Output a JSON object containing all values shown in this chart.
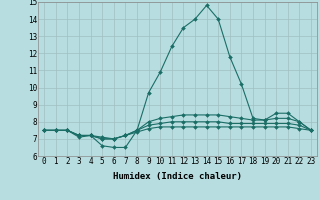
{
  "xlabel": "Humidex (Indice chaleur)",
  "ylabel": "",
  "xlim": [
    -0.5,
    23.5
  ],
  "ylim": [
    6,
    15
  ],
  "yticks": [
    6,
    7,
    8,
    9,
    10,
    11,
    12,
    13,
    14,
    15
  ],
  "xticks": [
    0,
    1,
    2,
    3,
    4,
    5,
    6,
    7,
    8,
    9,
    10,
    11,
    12,
    13,
    14,
    15,
    16,
    17,
    18,
    19,
    20,
    21,
    22,
    23
  ],
  "xtick_labels": [
    "0",
    "1",
    "2",
    "3",
    "4",
    "5",
    "6",
    "7",
    "8",
    "9",
    "10",
    "11",
    "12",
    "13",
    "14",
    "15",
    "16",
    "17",
    "18",
    "19",
    "20",
    "21",
    "22",
    "23"
  ],
  "background_color": "#b8dde0",
  "grid_color": "#9fbfc2",
  "line_color": "#1a6e66",
  "series": [
    [
      7.5,
      7.5,
      7.5,
      7.1,
      7.2,
      6.6,
      6.5,
      6.5,
      7.5,
      9.7,
      10.9,
      12.4,
      13.5,
      14.0,
      14.8,
      14.0,
      11.8,
      10.2,
      8.2,
      8.1,
      8.5,
      8.5,
      8.0,
      7.5
    ],
    [
      7.5,
      7.5,
      7.5,
      7.2,
      7.2,
      7.0,
      7.0,
      7.2,
      7.5,
      8.0,
      8.2,
      8.3,
      8.4,
      8.4,
      8.4,
      8.4,
      8.3,
      8.2,
      8.1,
      8.1,
      8.2,
      8.2,
      8.0,
      7.5
    ],
    [
      7.5,
      7.5,
      7.5,
      7.2,
      7.2,
      7.0,
      7.0,
      7.2,
      7.5,
      7.8,
      7.9,
      8.0,
      8.0,
      8.0,
      8.0,
      8.0,
      7.9,
      7.9,
      7.9,
      7.9,
      7.9,
      7.9,
      7.8,
      7.5
    ],
    [
      7.5,
      7.5,
      7.5,
      7.2,
      7.2,
      7.1,
      7.0,
      7.2,
      7.4,
      7.6,
      7.7,
      7.7,
      7.7,
      7.7,
      7.7,
      7.7,
      7.7,
      7.7,
      7.7,
      7.7,
      7.7,
      7.7,
      7.6,
      7.5
    ]
  ],
  "tick_fontsize": 5.5,
  "xlabel_fontsize": 6.5,
  "linewidth": 0.8,
  "markersize": 2.0
}
